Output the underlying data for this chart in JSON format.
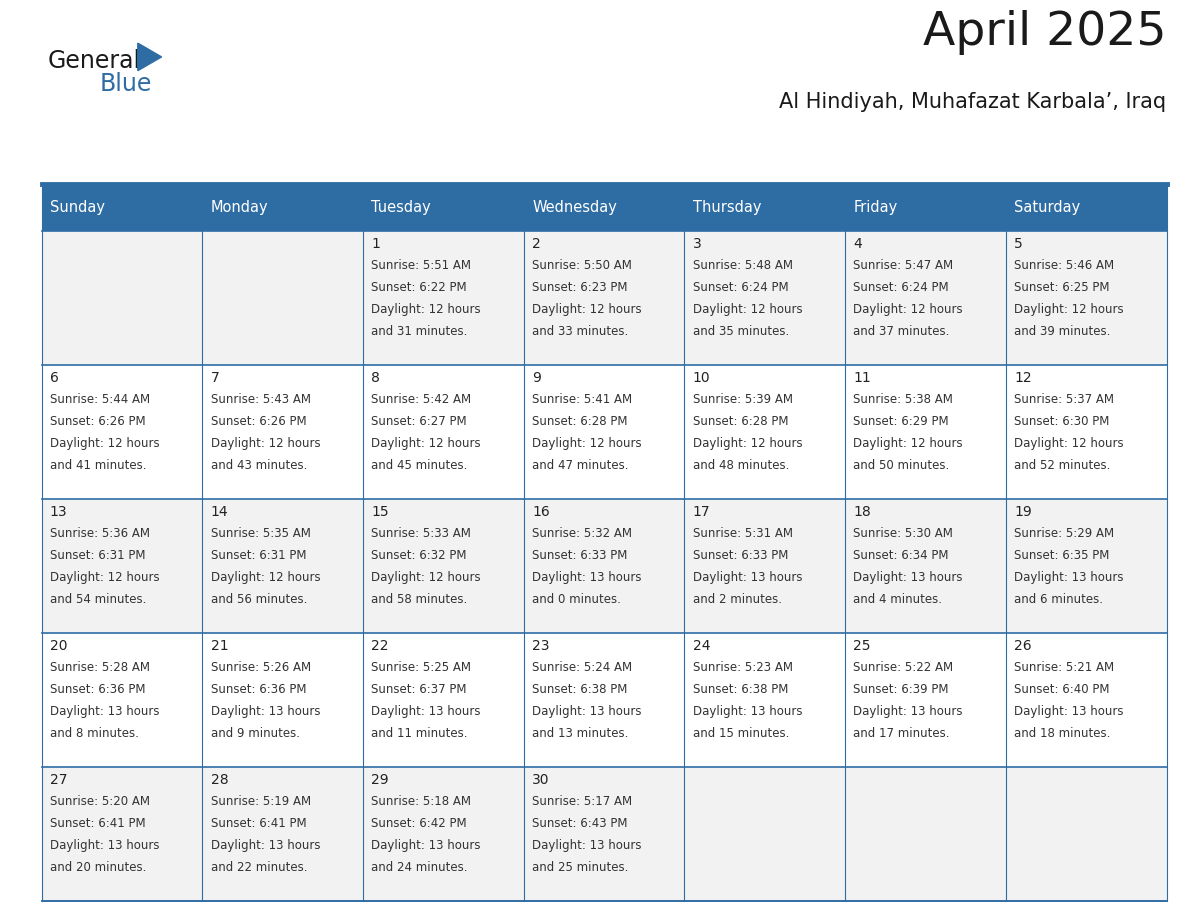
{
  "title": "April 2025",
  "subtitle": "Al Hindiyah, Muhafazat Karbala’, Iraq",
  "days_of_week": [
    "Sunday",
    "Monday",
    "Tuesday",
    "Wednesday",
    "Thursday",
    "Friday",
    "Saturday"
  ],
  "header_bg": "#2E6DA4",
  "header_text_color": "#FFFFFF",
  "row_bg_odd": "#F2F2F2",
  "row_bg_even": "#FFFFFF",
  "cell_text_color": "#333333",
  "day_number_color": "#222222",
  "grid_line_color": "#2E6DA4",
  "calendar_data": [
    [
      null,
      null,
      {
        "day": 1,
        "sunrise": "5:51 AM",
        "sunset": "6:22 PM",
        "daylight": "12 hours and 31 minutes."
      },
      {
        "day": 2,
        "sunrise": "5:50 AM",
        "sunset": "6:23 PM",
        "daylight": "12 hours and 33 minutes."
      },
      {
        "day": 3,
        "sunrise": "5:48 AM",
        "sunset": "6:24 PM",
        "daylight": "12 hours and 35 minutes."
      },
      {
        "day": 4,
        "sunrise": "5:47 AM",
        "sunset": "6:24 PM",
        "daylight": "12 hours and 37 minutes."
      },
      {
        "day": 5,
        "sunrise": "5:46 AM",
        "sunset": "6:25 PM",
        "daylight": "12 hours and 39 minutes."
      }
    ],
    [
      {
        "day": 6,
        "sunrise": "5:44 AM",
        "sunset": "6:26 PM",
        "daylight": "12 hours and 41 minutes."
      },
      {
        "day": 7,
        "sunrise": "5:43 AM",
        "sunset": "6:26 PM",
        "daylight": "12 hours and 43 minutes."
      },
      {
        "day": 8,
        "sunrise": "5:42 AM",
        "sunset": "6:27 PM",
        "daylight": "12 hours and 45 minutes."
      },
      {
        "day": 9,
        "sunrise": "5:41 AM",
        "sunset": "6:28 PM",
        "daylight": "12 hours and 47 minutes."
      },
      {
        "day": 10,
        "sunrise": "5:39 AM",
        "sunset": "6:28 PM",
        "daylight": "12 hours and 48 minutes."
      },
      {
        "day": 11,
        "sunrise": "5:38 AM",
        "sunset": "6:29 PM",
        "daylight": "12 hours and 50 minutes."
      },
      {
        "day": 12,
        "sunrise": "5:37 AM",
        "sunset": "6:30 PM",
        "daylight": "12 hours and 52 minutes."
      }
    ],
    [
      {
        "day": 13,
        "sunrise": "5:36 AM",
        "sunset": "6:31 PM",
        "daylight": "12 hours and 54 minutes."
      },
      {
        "day": 14,
        "sunrise": "5:35 AM",
        "sunset": "6:31 PM",
        "daylight": "12 hours and 56 minutes."
      },
      {
        "day": 15,
        "sunrise": "5:33 AM",
        "sunset": "6:32 PM",
        "daylight": "12 hours and 58 minutes."
      },
      {
        "day": 16,
        "sunrise": "5:32 AM",
        "sunset": "6:33 PM",
        "daylight": "13 hours and 0 minutes."
      },
      {
        "day": 17,
        "sunrise": "5:31 AM",
        "sunset": "6:33 PM",
        "daylight": "13 hours and 2 minutes."
      },
      {
        "day": 18,
        "sunrise": "5:30 AM",
        "sunset": "6:34 PM",
        "daylight": "13 hours and 4 minutes."
      },
      {
        "day": 19,
        "sunrise": "5:29 AM",
        "sunset": "6:35 PM",
        "daylight": "13 hours and 6 minutes."
      }
    ],
    [
      {
        "day": 20,
        "sunrise": "5:28 AM",
        "sunset": "6:36 PM",
        "daylight": "13 hours and 8 minutes."
      },
      {
        "day": 21,
        "sunrise": "5:26 AM",
        "sunset": "6:36 PM",
        "daylight": "13 hours and 9 minutes."
      },
      {
        "day": 22,
        "sunrise": "5:25 AM",
        "sunset": "6:37 PM",
        "daylight": "13 hours and 11 minutes."
      },
      {
        "day": 23,
        "sunrise": "5:24 AM",
        "sunset": "6:38 PM",
        "daylight": "13 hours and 13 minutes."
      },
      {
        "day": 24,
        "sunrise": "5:23 AM",
        "sunset": "6:38 PM",
        "daylight": "13 hours and 15 minutes."
      },
      {
        "day": 25,
        "sunrise": "5:22 AM",
        "sunset": "6:39 PM",
        "daylight": "13 hours and 17 minutes."
      },
      {
        "day": 26,
        "sunrise": "5:21 AM",
        "sunset": "6:40 PM",
        "daylight": "13 hours and 18 minutes."
      }
    ],
    [
      {
        "day": 27,
        "sunrise": "5:20 AM",
        "sunset": "6:41 PM",
        "daylight": "13 hours and 20 minutes."
      },
      {
        "day": 28,
        "sunrise": "5:19 AM",
        "sunset": "6:41 PM",
        "daylight": "13 hours and 22 minutes."
      },
      {
        "day": 29,
        "sunrise": "5:18 AM",
        "sunset": "6:42 PM",
        "daylight": "13 hours and 24 minutes."
      },
      {
        "day": 30,
        "sunrise": "5:17 AM",
        "sunset": "6:43 PM",
        "daylight": "13 hours and 25 minutes."
      },
      null,
      null,
      null
    ]
  ],
  "logo_text_general": "General",
  "logo_text_blue": "Blue",
  "logo_color_general": "#1a1a1a",
  "logo_color_blue": "#2E6DA4",
  "logo_triangle_color": "#2E6DA4",
  "fig_width": 11.88,
  "fig_height": 9.18,
  "dpi": 100
}
